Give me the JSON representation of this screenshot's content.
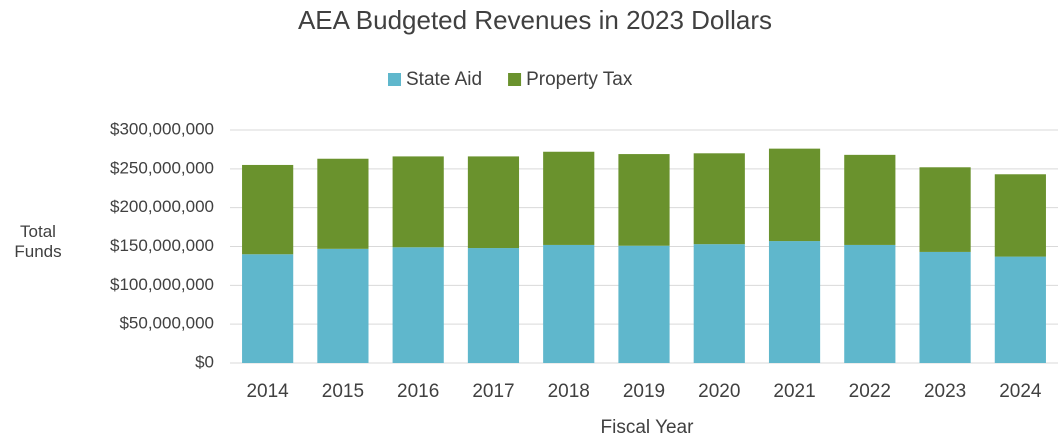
{
  "chart_data": {
    "type": "stacked_bar",
    "title": "AEA Budgeted Revenues in 2023 Dollars",
    "x_label": "Fiscal Year",
    "y_label": "Total Funds",
    "categories": [
      "2014",
      "2015",
      "2016",
      "2017",
      "2018",
      "2019",
      "2020",
      "2021",
      "2022",
      "2023",
      "2024"
    ],
    "series": [
      {
        "name": "State Aid",
        "color": "#5fb7cc",
        "values": [
          140000000,
          147000000,
          149000000,
          148000000,
          152000000,
          151000000,
          153000000,
          157000000,
          152000000,
          143000000,
          137000000
        ]
      },
      {
        "name": "Property Tax",
        "color": "#6a922d",
        "values": [
          115000000,
          116000000,
          117000000,
          118000000,
          120000000,
          118000000,
          117000000,
          119000000,
          116000000,
          109000000,
          106000000
        ]
      }
    ],
    "ylim": [
      0,
      300000000
    ],
    "yticks": [
      {
        "value": 0,
        "label": "$0"
      },
      {
        "value": 50000000,
        "label": "$50,000,000"
      },
      {
        "value": 100000000,
        "label": "$100,000,000"
      },
      {
        "value": 150000000,
        "label": "$150,000,000"
      },
      {
        "value": 200000000,
        "label": "$200,000,000"
      },
      {
        "value": 250000000,
        "label": "$250,000,000"
      },
      {
        "value": 300000000,
        "label": "$300,000,000"
      }
    ],
    "grid": true,
    "legend": "top"
  }
}
